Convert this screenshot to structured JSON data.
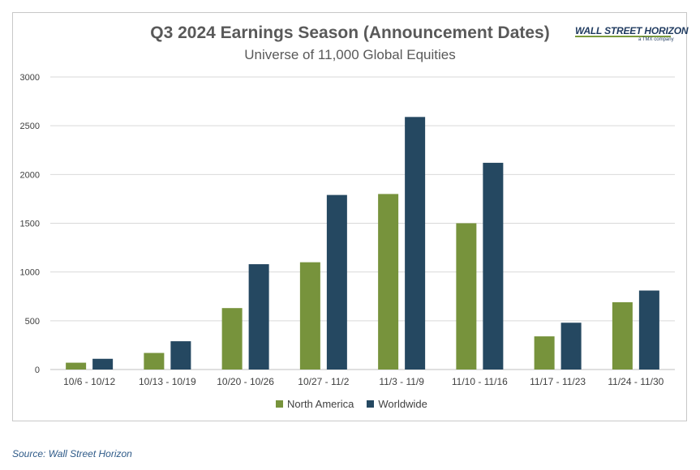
{
  "chart_data": {
    "type": "bar",
    "title": "Q3 2024 Earnings Season (Announcement Dates)",
    "subtitle": "Universe of 11,000 Global Equities",
    "categories": [
      "10/6 - 10/12",
      "10/13 - 10/19",
      "10/20 - 10/26",
      "10/27 - 11/2",
      "11/3 - 11/9",
      "11/10 - 11/16",
      "11/17 - 11/23",
      "11/24 - 11/30"
    ],
    "series": [
      {
        "name": "North America",
        "color": "#77933c",
        "values": [
          70,
          170,
          630,
          1100,
          1800,
          1500,
          340,
          690
        ]
      },
      {
        "name": "Worldwide",
        "color": "#254861",
        "values": [
          110,
          290,
          1080,
          1790,
          2590,
          2120,
          480,
          810
        ]
      }
    ],
    "ylim": [
      0,
      3000
    ],
    "yticks": [
      0,
      500,
      1000,
      1500,
      2000,
      2500,
      3000
    ],
    "xlabel": "",
    "ylabel": "",
    "grid": true,
    "legend": "bottom-center"
  },
  "logo": {
    "main": "WALL STREET HORIZON",
    "sub": "a TMX company"
  },
  "source": "Source: Wall Street Horizon"
}
